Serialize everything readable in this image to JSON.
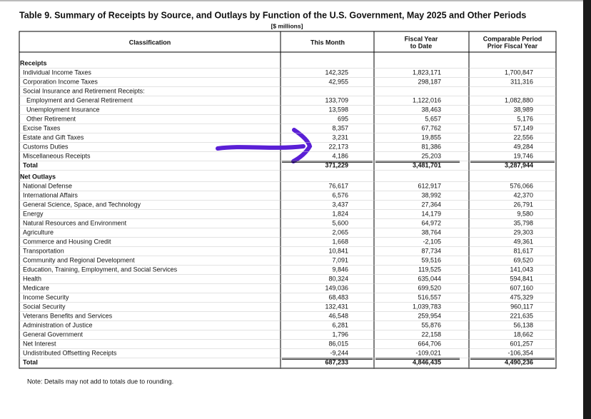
{
  "header": {
    "title": "Table 9. Summary of Receipts by Source, and Outlays by Function of the U.S. Government, May 2025 and Other Periods",
    "unit": "[$ millions]"
  },
  "table": {
    "columns": [
      "Classification",
      "This Month",
      [
        "Fiscal Year",
        "to Date"
      ],
      [
        "Comparable Period",
        "Prior Fiscal Year"
      ]
    ],
    "sections": [
      {
        "title": "Receipts",
        "rows": [
          {
            "label": "Individual Income Taxes",
            "values": [
              "142,325",
              "1,823,171",
              "1,700,847"
            ]
          },
          {
            "label": "Corporation Income Taxes",
            "values": [
              "42,955",
              "298,187",
              "311,316"
            ]
          },
          {
            "label": "Social Insurance and Retirement Receipts:",
            "rows": [
              {
                "label": "Employment and General Retirement",
                "values": [
                  "133,709",
                  "1,122,016",
                  "1,082,880"
                ]
              },
              {
                "label": "Unemployment Insurance",
                "values": [
                  "13,598",
                  "38,463",
                  "38,989"
                ]
              },
              {
                "label": "Other Retirement",
                "values": [
                  "695",
                  "5,657",
                  "5,176"
                ]
              }
            ]
          },
          {
            "label": "Excise Taxes",
            "values": [
              "8,357",
              "67,762",
              "57,149"
            ]
          },
          {
            "label": "Estate and Gift Taxes",
            "values": [
              "3,231",
              "19,855",
              "22,556"
            ]
          },
          {
            "label": "Customs Duties",
            "values": [
              "22,173",
              "81,386",
              "49,284"
            ]
          },
          {
            "label": "Miscellaneous Receipts",
            "values": [
              "4,186",
              "25,203",
              "19,746"
            ]
          }
        ],
        "total": {
          "label": "Total",
          "values": [
            "371,229",
            "3,481,701",
            "3,287,944"
          ]
        }
      },
      {
        "title": "Net Outlays",
        "rows": [
          {
            "label": "National Defense",
            "values": [
              "76,617",
              "612,917",
              "576,066"
            ]
          },
          {
            "label": "International Affairs",
            "values": [
              "6,576",
              "38,992",
              "42,370"
            ]
          },
          {
            "label": "General Science, Space, and Technology",
            "values": [
              "3,437",
              "27,364",
              "26,791"
            ]
          },
          {
            "label": "Energy",
            "values": [
              "1,824",
              "14,179",
              "9,580"
            ]
          },
          {
            "label": "Natural Resources and Environment",
            "values": [
              "5,600",
              "64,972",
              "35,798"
            ]
          },
          {
            "label": "Agriculture",
            "values": [
              "2,065",
              "38,764",
              "29,303"
            ]
          },
          {
            "label": "Commerce and Housing Credit",
            "values": [
              "1,668",
              "-2,105",
              "49,361"
            ]
          },
          {
            "label": "Transportation",
            "values": [
              "10,841",
              "87,734",
              "81,617"
            ]
          },
          {
            "label": "Community and Regional Development",
            "values": [
              "7,091",
              "59,516",
              "69,520"
            ]
          },
          {
            "label": "Education, Training, Employment, and Social Services",
            "values": [
              "9,846",
              "119,525",
              "141,043"
            ]
          },
          {
            "label": "Health",
            "values": [
              "80,324",
              "635,044",
              "594,841"
            ]
          },
          {
            "label": "Medicare",
            "values": [
              "149,036",
              "699,520",
              "607,160"
            ]
          },
          {
            "label": "Income Security",
            "values": [
              "68,483",
              "516,557",
              "475,329"
            ]
          },
          {
            "label": "Social Security",
            "values": [
              "132,431",
              "1,039,783",
              "960,117"
            ]
          },
          {
            "label": "Veterans Benefits and Services",
            "values": [
              "46,548",
              "259,954",
              "221,635"
            ]
          },
          {
            "label": "Administration of Justice",
            "values": [
              "6,281",
              "55,876",
              "56,138"
            ]
          },
          {
            "label": "General Government",
            "values": [
              "1,796",
              "22,158",
              "18,662"
            ]
          },
          {
            "label": "Net Interest",
            "values": [
              "86,015",
              "664,706",
              "601,257"
            ]
          },
          {
            "label": "Undistributed Offsetting Receipts",
            "values": [
              "-9,244",
              "-109,021",
              "-106,354"
            ]
          }
        ],
        "total": {
          "label": "Total",
          "values": [
            "687,233",
            "4,846,435",
            "4,490,236"
          ]
        }
      }
    ]
  },
  "note": "Note: Details may not add to totals due to rounding."
}
